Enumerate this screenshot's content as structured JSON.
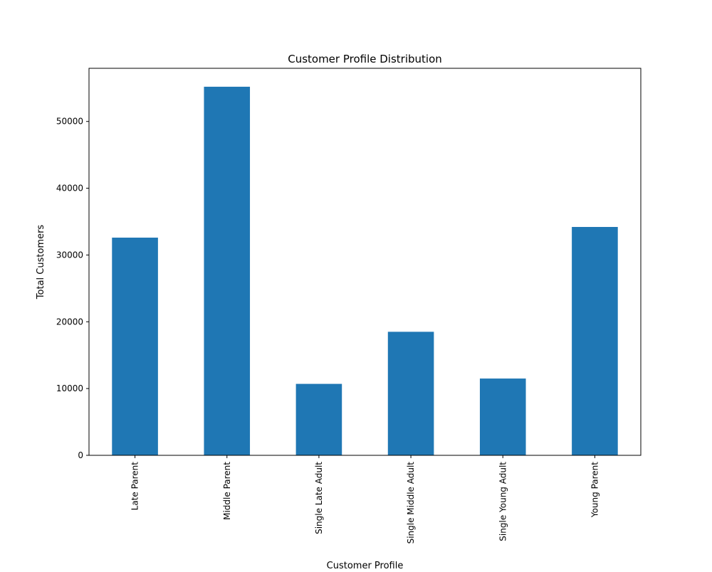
{
  "chart_data": {
    "type": "bar",
    "title": "Customer Profile Distribution",
    "xlabel": "Customer Profile",
    "ylabel": "Total Customers",
    "categories": [
      "Late Parent",
      "Middle Parent",
      "Single Late Adult",
      "Single Middle Adult",
      "Single Young Adult",
      "Young Parent"
    ],
    "values": [
      32600,
      55200,
      10700,
      18500,
      11500,
      34200
    ],
    "ylim": [
      0,
      57960
    ],
    "yticks": [
      0,
      10000,
      20000,
      30000,
      40000,
      50000
    ],
    "grid": false,
    "legend": "none",
    "colors": {
      "bar": "#1f77b4",
      "axis": "#000000",
      "background": "#ffffff"
    }
  }
}
